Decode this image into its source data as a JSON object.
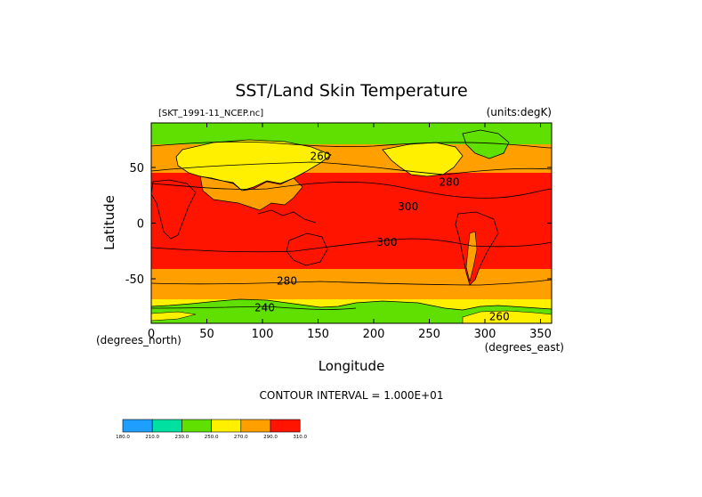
{
  "chart_data": {
    "type": "heatmap",
    "title": "SST/Land Skin Temperature",
    "file_label": "[SKT_1991-11_NCEP.nc]",
    "units_label": "(units:degK)",
    "xlabel": "Longitude",
    "ylabel": "Latitude",
    "x_unit_label": "(degrees_east)",
    "y_unit_label": "(degrees_north)",
    "xlim": [
      0,
      360
    ],
    "ylim": [
      -90,
      90
    ],
    "x_ticks": [
      0,
      50,
      100,
      150,
      200,
      250,
      300,
      350
    ],
    "y_ticks": [
      50,
      0,
      -50
    ],
    "contour_interval_label": "CONTOUR INTERVAL = 1.000E+01",
    "contour_labels": [
      {
        "text": "260",
        "lon": 152,
        "lat": 60
      },
      {
        "text": "280",
        "lon": 268,
        "lat": 37
      },
      {
        "text": "300",
        "lon": 231,
        "lat": 15
      },
      {
        "text": "300",
        "lon": 212,
        "lat": -17
      },
      {
        "text": "280",
        "lon": 122,
        "lat": -52
      },
      {
        "text": "240",
        "lon": 102,
        "lat": -76
      },
      {
        "text": "260",
        "lon": 313,
        "lat": -84
      }
    ],
    "colorbar": {
      "levels": [
        "180.0",
        "210.0",
        "230.0",
        "250.0",
        "270.0",
        "290.0",
        "310.0"
      ],
      "colors": [
        "#1e9fff",
        "#00e0a0",
        "#60e000",
        "#fff000",
        "#ffa000",
        "#ff1400"
      ]
    }
  }
}
